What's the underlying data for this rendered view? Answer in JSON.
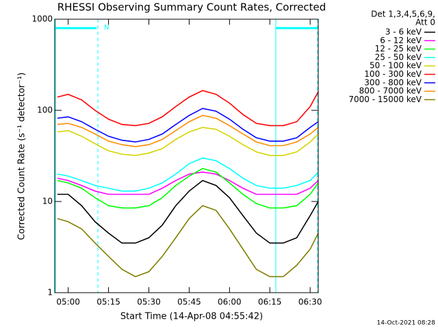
{
  "chart_data": {
    "type": "line",
    "title": "RHESSI Observing Summary Count Rates, Corrected",
    "xlabel": "Start Time (14-Apr-08 04:55:42)",
    "ylabel": "Corrected Count Rate (s⁻¹ detector⁻¹)",
    "legend_header": [
      "Det 1,3,4,5,6,9,",
      "Att 0"
    ],
    "annotation": "N",
    "footer": "14-Oct-2021 08:28",
    "yscale": "log",
    "ylim": [
      1,
      1000
    ],
    "yticks": [
      1,
      10,
      100,
      1000
    ],
    "xlim": [
      "04:55",
      "06:33"
    ],
    "xticks": [
      "05:00",
      "05:15",
      "05:30",
      "05:45",
      "06:00",
      "06:15",
      "06:30"
    ],
    "x": [
      "04:56",
      "05:00",
      "05:05",
      "05:10",
      "05:15",
      "05:20",
      "05:25",
      "05:30",
      "05:35",
      "05:40",
      "05:45",
      "05:50",
      "05:55",
      "06:00",
      "06:05",
      "06:10",
      "06:15",
      "06:20",
      "06:25",
      "06:30",
      "06:33"
    ],
    "series": [
      {
        "name": "3 - 6 keV",
        "color": "#000000",
        "values": [
          12,
          12,
          9,
          6,
          4.5,
          3.5,
          3.5,
          4,
          5.5,
          9,
          13,
          17,
          15,
          11,
          7,
          4.5,
          3.5,
          3.5,
          4,
          7,
          10
        ]
      },
      {
        "name": "6 - 12 keV",
        "color": "#ff00ff",
        "values": [
          18,
          17,
          15,
          13,
          12,
          12,
          12,
          12,
          14,
          17,
          20,
          21,
          20,
          17,
          14,
          12,
          12,
          12,
          12,
          14,
          17
        ]
      },
      {
        "name": "12 - 25 keV",
        "color": "#00ff00",
        "values": [
          17,
          16,
          14,
          11,
          9,
          8.5,
          8.5,
          9,
          11,
          15,
          19,
          23,
          21,
          16,
          12,
          9.5,
          8.5,
          8.5,
          9,
          12,
          16
        ]
      },
      {
        "name": "25 - 50 keV",
        "color": "#00ffff",
        "values": [
          20,
          19,
          17,
          15,
          14,
          13,
          13,
          14,
          16,
          20,
          26,
          30,
          28,
          23,
          18,
          15,
          14,
          14,
          15,
          17,
          21
        ]
      },
      {
        "name": "50 - 100 keV",
        "color": "#d4d400",
        "values": [
          58,
          60,
          52,
          43,
          36,
          33,
          32,
          34,
          38,
          48,
          58,
          65,
          62,
          52,
          42,
          35,
          32,
          32,
          35,
          45,
          55
        ]
      },
      {
        "name": "100 - 300 keV",
        "color": "#ff0000",
        "values": [
          140,
          150,
          130,
          100,
          80,
          70,
          68,
          72,
          85,
          110,
          140,
          165,
          150,
          120,
          90,
          72,
          68,
          68,
          75,
          110,
          160
        ]
      },
      {
        "name": "300 - 800 keV",
        "color": "#0000ff",
        "values": [
          82,
          85,
          75,
          62,
          52,
          47,
          45,
          48,
          55,
          70,
          88,
          105,
          98,
          80,
          62,
          50,
          46,
          46,
          50,
          65,
          75
        ]
      },
      {
        "name": "800 - 7000 keV",
        "color": "#ff8c00",
        "values": [
          70,
          72,
          65,
          55,
          46,
          42,
          40,
          42,
          48,
          60,
          75,
          88,
          82,
          68,
          55,
          45,
          41,
          41,
          45,
          55,
          65
        ]
      },
      {
        "name": "7000 - 15000 keV",
        "color": "#808000",
        "values": [
          6.5,
          6,
          5,
          3.5,
          2.5,
          1.8,
          1.5,
          1.7,
          2.5,
          4,
          6.5,
          9,
          8,
          5,
          3,
          1.8,
          1.5,
          1.5,
          2,
          3,
          4.5
        ]
      }
    ]
  }
}
